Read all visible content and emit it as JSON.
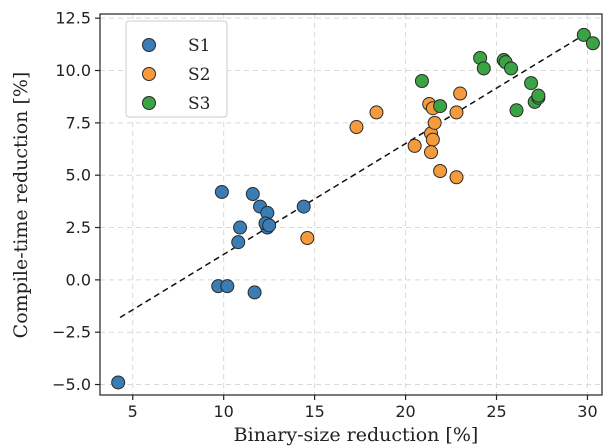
{
  "chart_data": {
    "type": "scatter",
    "title": "",
    "xlabel": "Binary-size reduction [%]",
    "ylabel": "Compile-time reduction [%]",
    "xlim": [
      3.2,
      30.8
    ],
    "ylim": [
      -5.5,
      12.7
    ],
    "xticks": [
      5,
      10,
      15,
      20,
      25,
      30
    ],
    "yticks": [
      -5.0,
      -2.5,
      0.0,
      2.5,
      5.0,
      7.5,
      10.0,
      12.5
    ],
    "xtick_labels": [
      "5",
      "10",
      "15",
      "20",
      "25",
      "30"
    ],
    "ytick_labels": [
      "−5.0",
      "−2.5",
      "0.0",
      "2.5",
      "5.0",
      "7.5",
      "10.0",
      "12.5"
    ],
    "grid": true,
    "legend": {
      "position": "upper-left"
    },
    "trendline": {
      "style": "dashed",
      "color": "#111111",
      "x": [
        4.3,
        29.8
      ],
      "y": [
        -1.8,
        11.7
      ]
    },
    "series": [
      {
        "name": "S1",
        "color": "#3a7db5",
        "points": [
          [
            4.2,
            -4.9
          ],
          [
            9.7,
            -0.3
          ],
          [
            10.2,
            -0.3
          ],
          [
            11.7,
            -0.6
          ],
          [
            9.9,
            4.2
          ],
          [
            11.6,
            4.1
          ],
          [
            12.0,
            3.5
          ],
          [
            12.4,
            3.2
          ],
          [
            12.4,
            2.5
          ],
          [
            12.3,
            2.7
          ],
          [
            12.5,
            2.6
          ],
          [
            10.9,
            2.5
          ],
          [
            10.8,
            1.8
          ],
          [
            14.4,
            3.5
          ]
        ]
      },
      {
        "name": "S2",
        "color": "#f59a3d",
        "points": [
          [
            14.6,
            2.0
          ],
          [
            17.3,
            7.3
          ],
          [
            18.4,
            8.0
          ],
          [
            20.5,
            6.4
          ],
          [
            21.3,
            8.4
          ],
          [
            21.5,
            8.2
          ],
          [
            21.4,
            7.0
          ],
          [
            21.6,
            7.5
          ],
          [
            21.5,
            6.7
          ],
          [
            21.4,
            6.1
          ],
          [
            21.9,
            5.2
          ],
          [
            22.8,
            8.0
          ],
          [
            22.8,
            4.9
          ],
          [
            23.0,
            8.9
          ]
        ]
      },
      {
        "name": "S3",
        "color": "#3aa343",
        "points": [
          [
            20.9,
            9.5
          ],
          [
            21.9,
            8.3
          ],
          [
            24.1,
            10.6
          ],
          [
            24.3,
            10.1
          ],
          [
            25.4,
            10.5
          ],
          [
            25.5,
            10.4
          ],
          [
            25.8,
            10.1
          ],
          [
            26.1,
            8.1
          ],
          [
            26.9,
            9.4
          ],
          [
            27.1,
            8.5
          ],
          [
            27.3,
            8.7
          ],
          [
            27.3,
            8.8
          ],
          [
            29.8,
            11.7
          ],
          [
            30.3,
            11.3
          ]
        ]
      }
    ]
  }
}
